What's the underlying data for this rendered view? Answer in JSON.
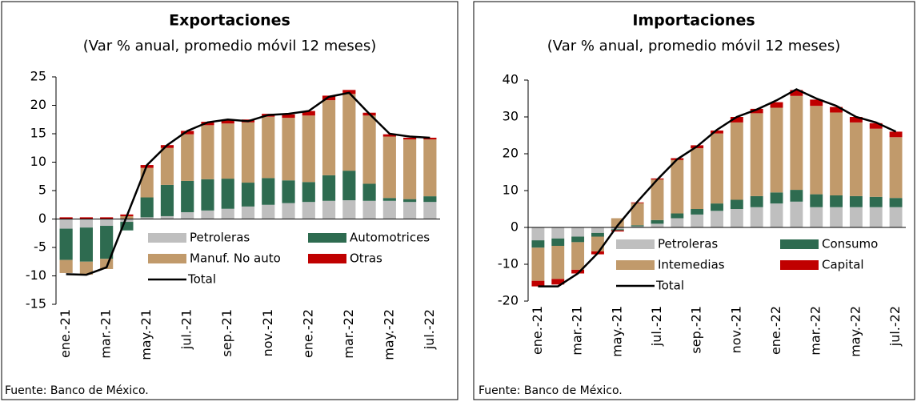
{
  "chart_data": [
    {
      "type": "bar",
      "title": "Exportaciones",
      "subtitle": "(Var % anual, promedio móvil 12 meses)",
      "source": "Fuente: Banco de México.",
      "categories": [
        "ene.-21",
        null,
        "mar.-21",
        null,
        "may.-21",
        null,
        "jul.-21",
        null,
        "sep.-21",
        null,
        "nov.-21",
        null,
        "ene.-22",
        null,
        "mar.-22",
        null,
        "may.-22",
        null,
        "jul.-22"
      ],
      "ylim": [
        -15,
        25
      ],
      "yticks": [
        -15,
        -10,
        -5,
        0,
        5,
        10,
        15,
        20,
        25
      ],
      "series": [
        {
          "name": "Petroleras",
          "color": "#bfbfbf",
          "values": [
            -1.7,
            -1.5,
            -1.2,
            -0.5,
            0.3,
            0.5,
            1.2,
            1.5,
            1.8,
            2.2,
            2.5,
            2.8,
            3,
            3.2,
            3.3,
            3.2,
            3.2,
            3,
            3
          ]
        },
        {
          "name": "Automotrices",
          "color": "#2e6b50",
          "values": [
            -5.5,
            -6,
            -5.8,
            -1.5,
            3.5,
            5.5,
            5.5,
            5.5,
            5.3,
            4.2,
            4.7,
            4,
            3.5,
            4.5,
            5.2,
            3,
            0.5,
            0.5,
            1
          ]
        },
        {
          "name": "Manuf. No auto",
          "color": "#c19a6b",
          "values": [
            -2.3,
            -2.3,
            -1.8,
            0.5,
            5.2,
            6.5,
            8.2,
            9.5,
            9.7,
            10.6,
            10.8,
            11,
            11.7,
            13.2,
            13.5,
            12,
            10.8,
            10.5,
            10
          ]
        },
        {
          "name": "Otras",
          "color": "#c00000",
          "values": [
            0.3,
            0.3,
            0.3,
            0.3,
            0.5,
            0.5,
            0.6,
            0.6,
            0.6,
            0.5,
            0.5,
            0.6,
            0.8,
            0.8,
            0.7,
            0.5,
            0.4,
            0.3,
            0.3
          ]
        },
        {
          "name": "Total",
          "type": "line",
          "color": "#000000",
          "values": [
            -9.7,
            -9.8,
            -8.5,
            0.5,
            9.5,
            13,
            15.5,
            17,
            17.5,
            17.2,
            18.3,
            18.5,
            19,
            21.5,
            22.2,
            18.5,
            15,
            14.5,
            14.3
          ]
        }
      ]
    },
    {
      "type": "bar",
      "title": "Importaciones",
      "subtitle": "(Var % anual, promedio móvil 12 meses)",
      "source": "Fuente: Banco de México.",
      "categories": [
        "ene.-21",
        null,
        "mar.-21",
        null,
        "may.-21",
        null,
        "jul.-21",
        null,
        "sep.-21",
        null,
        "nov.-21",
        null,
        "ene.-22",
        null,
        "mar.-22",
        null,
        "may.-22",
        null,
        "jul.-22"
      ],
      "ylim": [
        -20,
        40
      ],
      "yticks": [
        -20,
        -10,
        0,
        10,
        20,
        30,
        40
      ],
      "series": [
        {
          "name": "Petroleras",
          "color": "#bfbfbf",
          "values": [
            -3.5,
            -3,
            -2.5,
            -1.5,
            -0.5,
            0.3,
            1,
            2.5,
            3.5,
            4.5,
            5,
            5.5,
            6.5,
            7,
            5.5,
            5.5,
            5.5,
            5.5,
            5.5
          ]
        },
        {
          "name": "Consumo",
          "color": "#2e6b50",
          "values": [
            -2,
            -2,
            -1.5,
            -1,
            -0.3,
            0.3,
            1,
            1.3,
            1.5,
            2,
            2.5,
            3,
            3,
            3.2,
            3.5,
            3.2,
            3,
            2.8,
            2.5
          ]
        },
        {
          "name": "Intemedias",
          "color": "#c19a6b",
          "values": [
            -9,
            -9,
            -7.5,
            -4,
            2.5,
            6,
            11,
            14.5,
            16.5,
            19,
            21,
            22.5,
            23,
            25.5,
            24,
            22.5,
            20,
            18.5,
            16.5
          ]
        },
        {
          "name": "Capital",
          "color": "#c00000",
          "values": [
            -1.5,
            -1.5,
            -1,
            -0.8,
            -0.3,
            0.2,
            0.3,
            0.5,
            0.8,
            0.8,
            1.5,
            1.2,
            1.5,
            1.6,
            1.7,
            1.5,
            1.5,
            1.5,
            1.5
          ]
        },
        {
          "name": "Total",
          "type": "line",
          "color": "#000000",
          "values": [
            -16,
            -16,
            -12.5,
            -7,
            0.5,
            7,
            13,
            18.5,
            22,
            26.5,
            30,
            32,
            34.5,
            37.5,
            35,
            33,
            30,
            28.5,
            26
          ]
        }
      ]
    }
  ]
}
